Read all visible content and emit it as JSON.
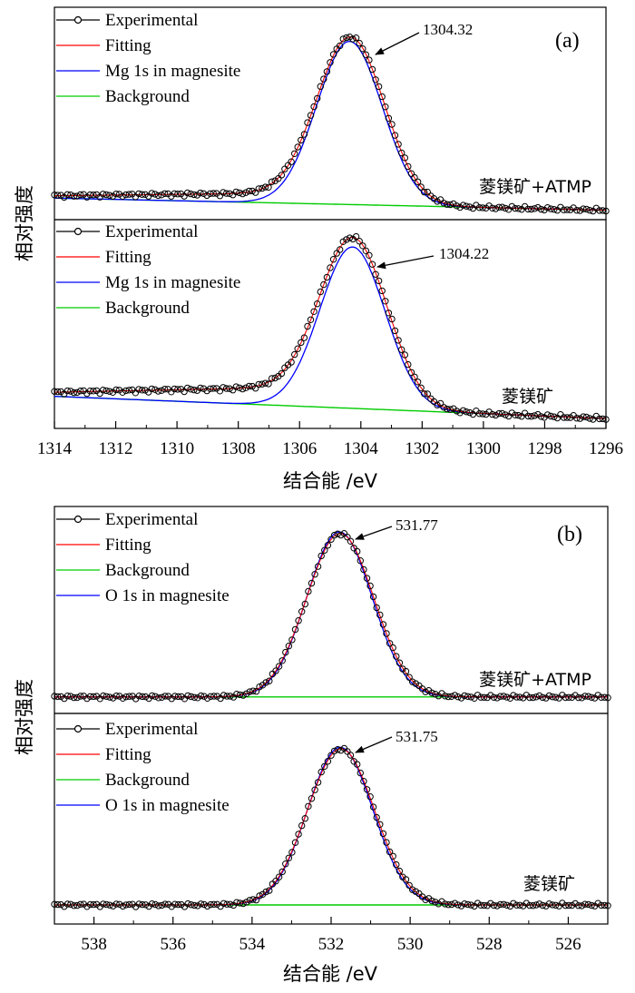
{
  "chart_data": [
    {
      "type": "line",
      "panel_label": "(a)",
      "xlabel": "结合能 /eV",
      "ylabel": "相对强度",
      "xlim": [
        1314,
        1296
      ],
      "xticks": [
        1314,
        1312,
        1310,
        1308,
        1306,
        1304,
        1302,
        1300,
        1298,
        1296
      ],
      "subplots": [
        {
          "sample": "菱镁矿+ATMP",
          "peak_label": "1304.32",
          "peak_x": 1304.32,
          "legend": [
            "Experimental",
            "Fitting",
            "Mg 1s in magnesite",
            "Background"
          ],
          "legend_colors": [
            "#000000",
            "#ff0000",
            "#0000ff",
            "#00cc00"
          ],
          "bg_start": 0.08,
          "bg_end": 0.02,
          "sigma": 1.1,
          "height": 0.8,
          "tilt": 0.06
        },
        {
          "sample": "菱镁矿",
          "peak_label": "1304.22",
          "peak_x": 1304.22,
          "legend": [
            "Experimental",
            "Fitting",
            "Mg 1s in magnesite",
            "Background"
          ],
          "legend_colors": [
            "#000000",
            "#ff0000",
            "#0000ff",
            "#00cc00"
          ],
          "bg_start": 0.12,
          "bg_end": 0.02,
          "sigma": 1.1,
          "height": 0.72,
          "tilt": 0.1
        }
      ]
    },
    {
      "type": "line",
      "panel_label": "(b)",
      "xlabel": "结合能 /eV",
      "ylabel": "相对强度",
      "xlim": [
        539,
        525
      ],
      "xticks": [
        538,
        536,
        534,
        532,
        530,
        528,
        526
      ],
      "subplots": [
        {
          "sample": "菱镁矿+ATMP",
          "peak_label": "531.77",
          "peak_x": 531.77,
          "legend": [
            "Experimental",
            "Fitting",
            "Background",
            "O 1s in magnesite"
          ],
          "legend_colors": [
            "#000000",
            "#ff0000",
            "#00cc00",
            "#0000ff"
          ],
          "bg_start": 0.02,
          "bg_end": 0.02,
          "sigma": 0.85,
          "height": 0.86,
          "tilt": 0.0
        },
        {
          "sample": "菱镁矿",
          "peak_label": "531.75",
          "peak_x": 531.75,
          "legend": [
            "Experimental",
            "Fitting",
            "Background",
            "O 1s in magnesite"
          ],
          "legend_colors": [
            "#000000",
            "#ff0000",
            "#00cc00",
            "#0000ff"
          ],
          "bg_start": 0.02,
          "bg_end": 0.02,
          "sigma": 0.85,
          "height": 0.86,
          "tilt": 0.0
        }
      ]
    }
  ]
}
